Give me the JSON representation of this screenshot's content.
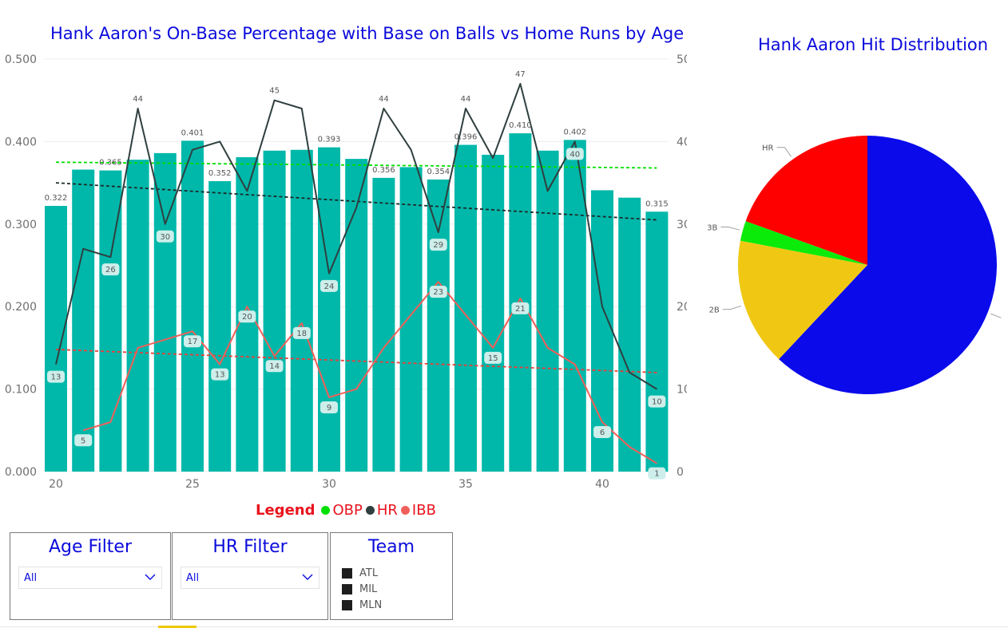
{
  "titles": {
    "main": "Hank Aaron's On-Base Percentage with Base on Balls vs Home Runs by Age",
    "pie": "Hank Aaron Hit Distribution"
  },
  "legend": {
    "title": "Legend",
    "items": [
      {
        "label": "OBP",
        "color": "#00e000"
      },
      {
        "label": "HR",
        "color": "#2f3f3f"
      },
      {
        "label": "IBB",
        "color": "#f0605a"
      }
    ]
  },
  "slicers": {
    "age": {
      "title": "Age Filter",
      "value": "All"
    },
    "hr": {
      "title": "HR Filter",
      "value": "All"
    },
    "team": {
      "title": "Team",
      "options": [
        "ATL",
        "MIL",
        "MLN"
      ]
    }
  },
  "chart_data": [
    {
      "type": "bar",
      "title": "Hank Aaron's On-Base Percentage with Base on Balls vs Home Runs by Age",
      "x": [
        20,
        21,
        22,
        23,
        24,
        25,
        26,
        27,
        28,
        29,
        30,
        31,
        32,
        33,
        34,
        35,
        36,
        37,
        38,
        39,
        40,
        41,
        42
      ],
      "x_ticks": [
        "20",
        "25",
        "30",
        "35",
        "40"
      ],
      "y_left_ticks": [
        "0.000",
        "0.100",
        "0.200",
        "0.300",
        "0.400",
        "0.500"
      ],
      "y_right_ticks": [
        "0",
        "10",
        "20",
        "30",
        "40",
        "50"
      ],
      "ylim_left": [
        0,
        0.5
      ],
      "ylim_right": [
        0,
        50
      ],
      "grid": true,
      "bar_color": "#00b8aa",
      "series": [
        {
          "name": "OBP",
          "kind": "bar",
          "axis": "left",
          "values": [
            0.322,
            0.366,
            0.365,
            0.378,
            0.386,
            0.401,
            0.352,
            0.381,
            0.389,
            0.39,
            0.393,
            0.379,
            0.356,
            0.369,
            0.354,
            0.396,
            0.384,
            0.41,
            0.389,
            0.402,
            0.341,
            0.332,
            0.315
          ]
        },
        {
          "name": "HR",
          "kind": "line",
          "axis": "right",
          "color": "#2f3f3f",
          "values": [
            13,
            27,
            26,
            44,
            30,
            39,
            40,
            34,
            45,
            44,
            24,
            32,
            44,
            39,
            29,
            44,
            38,
            47,
            34,
            40,
            20,
            12,
            10
          ]
        },
        {
          "name": "IBB",
          "kind": "line",
          "axis": "right",
          "color": "#f0605a",
          "values": [
            null,
            5,
            6,
            15,
            16,
            17,
            13,
            20,
            14,
            18,
            9,
            10,
            15,
            19,
            23,
            null,
            15,
            21,
            15,
            13,
            6,
            3,
            1
          ]
        }
      ],
      "bar_labels": [
        {
          "index": 0,
          "text": "0.322"
        },
        {
          "index": 2,
          "text": "0.365"
        },
        {
          "index": 5,
          "text": "0.401"
        },
        {
          "index": 6,
          "text": "0.352"
        },
        {
          "index": 10,
          "text": "0.393"
        },
        {
          "index": 12,
          "text": "0.356"
        },
        {
          "index": 14,
          "text": "0.354"
        },
        {
          "index": 15,
          "text": "0.396"
        },
        {
          "index": 17,
          "text": "0.410"
        },
        {
          "index": 19,
          "text": "0.402"
        },
        {
          "index": 22,
          "text": "0.315"
        }
      ],
      "hr_labels": [
        {
          "index": 0,
          "text": "13",
          "value": 13
        },
        {
          "index": 2,
          "text": "26",
          "value": 26
        },
        {
          "index": 3,
          "text": "44",
          "value": 44
        },
        {
          "index": 4,
          "text": "30",
          "value": 30
        },
        {
          "index": 8,
          "text": "45",
          "value": 45
        },
        {
          "index": 10,
          "text": "24",
          "value": 24
        },
        {
          "index": 12,
          "text": "44",
          "value": 44
        },
        {
          "index": 14,
          "text": "29",
          "value": 29
        },
        {
          "index": 15,
          "text": "44",
          "value": 44
        },
        {
          "index": 17,
          "text": "47",
          "value": 47
        },
        {
          "index": 19,
          "text": "40",
          "value": 40
        },
        {
          "index": 22,
          "text": "10",
          "value": 10
        }
      ],
      "ibb_labels": [
        {
          "index": 1,
          "text": "5",
          "value": 5
        },
        {
          "index": 5,
          "text": "17",
          "value": 17
        },
        {
          "index": 6,
          "text": "13",
          "value": 13
        },
        {
          "index": 7,
          "text": "20",
          "value": 20
        },
        {
          "index": 8,
          "text": "14",
          "value": 14
        },
        {
          "index": 9,
          "text": "18",
          "value": 18
        },
        {
          "index": 10,
          "text": "9",
          "value": 9
        },
        {
          "index": 14,
          "text": "23",
          "value": 23
        },
        {
          "index": 16,
          "text": "15",
          "value": 15
        },
        {
          "index": 17,
          "text": "21",
          "value": 21
        },
        {
          "index": 20,
          "text": "6",
          "value": 6
        },
        {
          "index": 22,
          "text": "1",
          "value": 1
        }
      ],
      "trendlines": [
        {
          "name": "OBP trend",
          "axis": "left",
          "color": "#00e000",
          "from": [
            20,
            0.375
          ],
          "to": [
            42,
            0.368
          ]
        },
        {
          "name": "HR trend",
          "axis": "right",
          "color": "#1e2a2a",
          "from": [
            20,
            35
          ],
          "to": [
            42,
            30.5
          ]
        },
        {
          "name": "IBB trend",
          "axis": "right",
          "color": "#e8403a",
          "from": [
            20,
            14.8
          ],
          "to": [
            42,
            12
          ]
        }
      ]
    },
    {
      "type": "pie",
      "title": "Hank Aaron Hit Distribution",
      "slices": [
        {
          "label": "1B",
          "value": 62.0,
          "color": "#0a0aeb",
          "show_label": false
        },
        {
          "label": "2B",
          "value": 16.0,
          "color": "#f0c814",
          "show_label": true
        },
        {
          "label": "3B",
          "value": 2.5,
          "color": "#0aeb0a",
          "show_label": true
        },
        {
          "label": "HR",
          "value": 19.5,
          "color": "#ff0000",
          "show_label": true
        }
      ]
    }
  ]
}
